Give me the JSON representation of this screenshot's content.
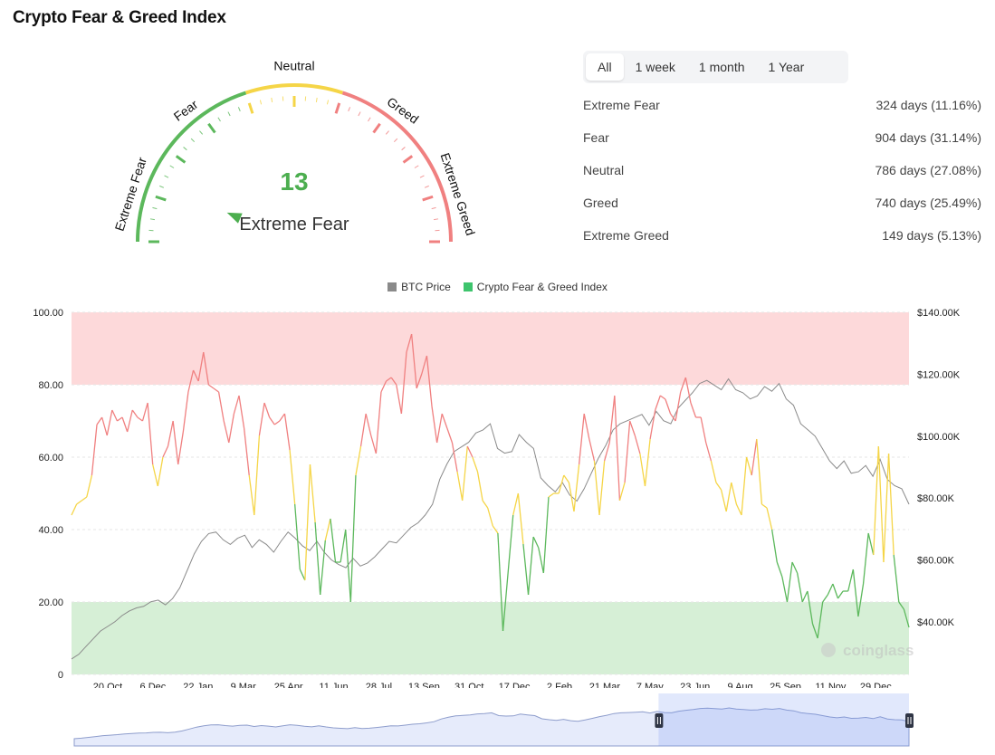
{
  "page": {
    "title": "Crypto Fear & Greed Index"
  },
  "gauge": {
    "value": 13,
    "value_text": "13",
    "classification": "Extreme Fear",
    "min": 0,
    "max": 100,
    "zone_labels": [
      "Extreme Fear",
      "Fear",
      "Neutral",
      "Greed",
      "Extreme Greed"
    ],
    "colors": {
      "fear": "#5cb85c",
      "neutral": "#f5d547",
      "greed": "#f08080"
    }
  },
  "range_tabs": [
    {
      "label": "All",
      "active": true
    },
    {
      "label": "1 week",
      "active": false
    },
    {
      "label": "1 month",
      "active": false
    },
    {
      "label": "1 Year",
      "active": false
    }
  ],
  "stats": [
    {
      "label": "Extreme Fear",
      "value": "324 days (11.16%)"
    },
    {
      "label": "Fear",
      "value": "904 days (31.14%)"
    },
    {
      "label": "Neutral",
      "value": "786 days (27.08%)"
    },
    {
      "label": "Greed",
      "value": "740 days (25.49%)"
    },
    {
      "label": "Extreme Greed",
      "value": "149 days (5.13%)"
    }
  ],
  "chart_data": {
    "type": "line",
    "legend_position": "top-center",
    "series": [
      {
        "name": "BTC Price",
        "color": "#8a8a8a",
        "axis": "right",
        "values": [
          28000,
          29500,
          32000,
          34500,
          37000,
          38500,
          40000,
          42000,
          43500,
          44500,
          45000,
          46500,
          47000,
          45500,
          47500,
          51000,
          56500,
          62000,
          66000,
          68500,
          69000,
          66500,
          65000,
          67000,
          68000,
          64000,
          66500,
          65000,
          62500,
          66000,
          69000,
          67000,
          64500,
          63000,
          66000,
          62500,
          60000,
          58500,
          57500,
          60500,
          58000,
          59000,
          61000,
          63500,
          66000,
          65500,
          68000,
          70500,
          72000,
          74500,
          78000,
          86000,
          91000,
          95000,
          96500,
          98000,
          101000,
          102000,
          104000,
          96000,
          94500,
          95000,
          100500,
          98000,
          96000,
          86500,
          84000,
          82000,
          85000,
          81000,
          79000,
          83000,
          88000,
          93000,
          97000,
          102000,
          104000,
          105000,
          106000,
          107000,
          103500,
          108000,
          105000,
          104000,
          109000,
          111500,
          114000,
          117000,
          118000,
          116500,
          115000,
          118500,
          115000,
          114000,
          112000,
          113000,
          116000,
          114500,
          117000,
          112000,
          110000,
          104000,
          102000,
          100000,
          96000,
          92000,
          89500,
          92000,
          88000,
          88500,
          90500,
          87000,
          92500,
          86000,
          84000,
          83000,
          78000
        ]
      },
      {
        "name": "Crypto Fear & Greed Index",
        "axis": "left",
        "values": [
          44,
          47,
          48,
          49,
          55,
          69,
          71,
          66,
          73,
          70,
          71,
          67,
          73,
          71,
          70,
          75,
          58,
          52,
          60,
          63,
          70,
          58,
          67,
          78,
          84,
          81,
          89,
          80,
          79,
          78,
          70,
          64,
          72,
          77,
          68,
          55,
          44,
          66,
          75,
          71,
          69,
          70,
          72,
          62,
          47,
          29,
          26,
          58,
          42,
          22,
          37,
          43,
          31,
          31,
          40,
          20,
          55,
          63,
          72,
          66,
          61,
          78,
          81,
          82,
          80,
          72,
          89,
          94,
          79,
          83,
          88,
          74,
          64,
          72,
          68,
          64,
          56,
          48,
          63,
          60,
          56,
          48,
          46,
          41,
          39,
          12,
          28,
          44,
          50,
          36,
          22,
          38,
          35,
          28,
          49,
          50,
          50,
          55,
          53,
          45,
          58,
          72,
          65,
          59,
          44,
          59,
          64,
          77,
          48,
          53,
          70,
          66,
          61,
          52,
          65,
          73,
          77,
          76,
          72,
          70,
          78,
          82,
          75,
          71,
          71,
          64,
          59,
          53,
          51,
          45,
          53,
          47,
          44,
          60,
          55,
          65,
          47,
          46,
          40,
          31,
          27,
          20,
          31,
          28,
          20,
          23,
          14,
          10,
          20,
          22,
          25,
          21,
          23,
          23,
          29,
          16,
          25,
          39,
          33,
          63,
          31,
          61,
          33,
          20,
          18,
          13
        ]
      }
    ],
    "zones": [
      {
        "from": 0,
        "to": 20,
        "color": "#5cb85c"
      },
      {
        "from": 20,
        "to": 40,
        "color": "#5cb85c"
      },
      {
        "from": 40,
        "to": 60,
        "color": "#f5d547"
      },
      {
        "from": 60,
        "to": 80,
        "color": "#f08080"
      },
      {
        "from": 80,
        "to": 100,
        "color": "#f08080"
      }
    ],
    "x_tick_labels": [
      "20 Oct",
      "6 Dec",
      "22 Jan",
      "9 Mar",
      "25 Apr",
      "11 Jun",
      "28 Jul",
      "13 Sep",
      "31 Oct",
      "17 Dec",
      "2 Feb",
      "21 Mar",
      "7 May",
      "23 Jun",
      "9 Aug",
      "25 Sep",
      "11 Nov",
      "29 Dec"
    ],
    "y_left_ticks": [
      "0",
      "20.00",
      "40.00",
      "60.00",
      "80.00",
      "100.00"
    ],
    "y_left_range": [
      0,
      100
    ],
    "y_right_ticks": [
      "$40.00K",
      "$60.00K",
      "$80.00K",
      "$100.00K",
      "$120.00K",
      "$140.00K"
    ],
    "y_right_range": [
      23000,
      140000
    ],
    "grid": true,
    "watermark": "coinglass",
    "navigator_selection": [
      0.7,
      1.0
    ]
  }
}
